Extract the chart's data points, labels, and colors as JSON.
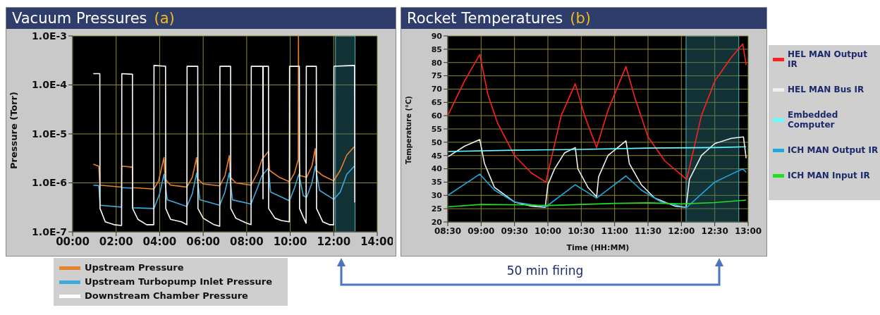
{
  "chart_data": [
    {
      "type": "line",
      "title": "Vacuum Pressures",
      "subtitle": "(a)",
      "ylabel": "Pressure (Torr)",
      "log": "y",
      "grid": true,
      "legend": "bottom",
      "line_style": "solid",
      "xlim": [
        0,
        14
      ],
      "xticks": [
        {
          "value": 0,
          "label": "00:00"
        },
        {
          "value": 2,
          "label": "02:00"
        },
        {
          "value": 4,
          "label": "04:00"
        },
        {
          "value": 6,
          "label": "06:00"
        },
        {
          "value": 8,
          "label": "08:00"
        },
        {
          "value": 10,
          "label": "10:00"
        },
        {
          "value": 12,
          "label": "12:00"
        },
        {
          "value": 14,
          "label": "14:00"
        }
      ],
      "ylim": [
        1e-07,
        0.001
      ],
      "yticks": [
        {
          "value": 1e-07,
          "label": "1.0E-7"
        },
        {
          "value": 1e-06,
          "label": "1.0E-6"
        },
        {
          "value": 1e-05,
          "label": "1.0E-5"
        },
        {
          "value": 0.0001,
          "label": "1.0E-4"
        },
        {
          "value": 0.001,
          "label": "1.0E-3"
        }
      ],
      "bands": [
        {
          "axis": "x",
          "from": 12.08,
          "to": 12.98,
          "color": "#2a6f78"
        }
      ],
      "series": [
        {
          "name": "Upstream Pressure",
          "color": "#e8822a",
          "x": [
            0.95,
            1.2,
            1.25,
            2.25,
            2.26,
            2.75,
            2.76,
            3.74,
            3.95,
            4.2,
            4.25,
            4.5,
            5.25,
            5.5,
            5.7,
            5.75,
            6.0,
            6.76,
            7.0,
            7.2,
            7.25,
            7.5,
            8.2,
            8.5,
            8.7,
            9.0,
            9.05,
            9.5,
            9.97,
            10.2,
            10.37,
            10.38,
            10.4,
            10.45,
            10.75,
            11.0,
            11.15,
            11.2,
            11.5,
            12.0,
            12.3,
            12.6,
            12.95
          ],
          "values": [
            2.4e-06,
            2.2e-06,
            9e-07,
            8.2e-07,
            2.2e-06,
            2.1e-06,
            8e-07,
            7.5e-07,
            1.1e-06,
            3.3e-06,
            1.2e-06,
            9e-07,
            8.2e-07,
            1.3e-06,
            3.3e-06,
            1.2e-06,
            9.5e-07,
            8.7e-07,
            1.4e-06,
            3.6e-06,
            1.3e-06,
            1e-06,
            9e-07,
            1.6e-06,
            3e-06,
            4.4e-06,
            1.8e-06,
            1.3e-06,
            1.05e-06,
            1.6e-06,
            3e-06,
            0.001,
            3.3e-06,
            1.4e-06,
            1.3e-06,
            2.2e-06,
            5e-06,
            1.8e-06,
            1.4e-06,
            1.1e-06,
            1.8e-06,
            3.7e-06,
            5.5e-06
          ]
        },
        {
          "name": "Upstream Turbopump Inlet Pressure",
          "color": "#3fa9dc",
          "x": [
            0.95,
            1.2,
            1.26,
            2.25,
            2.26,
            2.75,
            2.76,
            3.74,
            4.0,
            4.2,
            4.35,
            5.25,
            5.5,
            5.7,
            5.85,
            6.76,
            7.0,
            7.2,
            7.35,
            8.2,
            8.5,
            8.7,
            9.0,
            9.1,
            9.97,
            10.2,
            10.4,
            10.6,
            10.75,
            11.0,
            11.15,
            11.35,
            12.0,
            12.3,
            12.6,
            12.95
          ],
          "values": [
            9e-07,
            8.8e-07,
            3.5e-07,
            3.2e-07,
            8e-07,
            7.8e-07,
            3.1e-07,
            3e-07,
            6e-07,
            1.5e-06,
            4.5e-07,
            3.3e-07,
            6e-07,
            1.6e-06,
            4.5e-07,
            3.5e-07,
            6.5e-07,
            1.6e-06,
            4.5e-07,
            3.7e-07,
            8e-07,
            1.4e-06,
            2e-06,
            6.5e-07,
            4.3e-07,
            8e-07,
            1.5e-06,
            5.5e-07,
            5e-07,
            1e-06,
            2.2e-06,
            7e-07,
            4.6e-07,
            6.5e-07,
            1.5e-06,
            2.2e-06
          ]
        },
        {
          "name": "Downstream Chamber Pressure",
          "color": "#ffffff",
          "x": [
            0.95,
            1.25,
            1.26,
            1.5,
            1.9,
            2.25,
            2.26,
            2.75,
            2.76,
            3.0,
            3.4,
            3.73,
            3.74,
            4.27,
            4.28,
            4.5,
            5.0,
            5.25,
            5.26,
            5.75,
            5.76,
            6.0,
            6.5,
            6.76,
            6.77,
            7.26,
            7.27,
            7.5,
            8.0,
            8.2,
            8.21,
            8.74,
            8.75,
            8.76,
            9.0,
            9.01,
            9.3,
            9.6,
            9.96,
            9.97,
            10.42,
            10.43,
            10.6,
            10.73,
            10.74,
            11.2,
            11.21,
            11.5,
            11.8,
            12.0,
            12.01,
            12.96,
            12.97
          ],
          "values": [
            0.00017,
            0.00017,
            3e-07,
            1.6e-07,
            1.4e-07,
            1.35e-07,
            0.00017,
            0.000165,
            3e-07,
            1.8e-07,
            1.4e-07,
            1.4e-07,
            0.00025,
            0.00024,
            3e-07,
            1.8e-07,
            1.6e-07,
            1.4e-07,
            0.00024,
            0.00024,
            3e-07,
            1.9e-07,
            1.4e-07,
            1.3e-07,
            0.00024,
            0.00024,
            3e-07,
            1.9e-07,
            1.5e-07,
            1.4e-07,
            0.00024,
            0.00024,
            4.7e-07,
            0.00024,
            0.00024,
            3e-07,
            1.9e-07,
            1.7e-07,
            1.6e-07,
            0.00024,
            0.00024,
            3e-07,
            2e-07,
            1.5e-07,
            0.00024,
            0.00024,
            3e-07,
            1.6e-07,
            1.4e-07,
            1.4e-07,
            0.00024,
            0.00025,
            4e-07
          ]
        }
      ]
    },
    {
      "type": "line",
      "title": "Rocket Temperatures",
      "subtitle": "(b)",
      "xlabel": "Time (HH:MM)",
      "ylabel": "Temperature (°C)",
      "grid": true,
      "legend": "right",
      "line_style": "solid",
      "annotations": [
        "50 min firing"
      ],
      "xlim": [
        8.5,
        13
      ],
      "xticks": [
        {
          "value": 8.5,
          "label": "08:30"
        },
        {
          "value": 9,
          "label": "09:00"
        },
        {
          "value": 9.5,
          "label": "09:30"
        },
        {
          "value": 10,
          "label": "10:00"
        },
        {
          "value": 10.5,
          "label": "10:30"
        },
        {
          "value": 11,
          "label": "11:00"
        },
        {
          "value": 11.5,
          "label": "11:30"
        },
        {
          "value": 12,
          "label": "12:00"
        },
        {
          "value": 12.5,
          "label": "12:30"
        },
        {
          "value": 13,
          "label": "13:00"
        }
      ],
      "ylim": [
        20,
        90
      ],
      "yticks": [
        20,
        25,
        30,
        35,
        40,
        45,
        50,
        55,
        60,
        65,
        70,
        75,
        80,
        85,
        90
      ],
      "bands": [
        {
          "axis": "x",
          "from": 12.07,
          "to": 12.86,
          "color": "#2a6f78"
        }
      ],
      "series": [
        {
          "name": "HEL MAN Output IR",
          "color": "#ff2020",
          "x": [
            8.5,
            8.75,
            8.98,
            9.1,
            9.25,
            9.5,
            9.75,
            9.97,
            10.2,
            10.41,
            10.55,
            10.73,
            10.9,
            11.17,
            11.3,
            11.5,
            11.75,
            12.08,
            12.3,
            12.5,
            12.75,
            12.92,
            12.97
          ],
          "values": [
            60,
            73,
            83,
            68,
            57,
            45,
            38.5,
            35,
            60,
            72,
            60,
            48,
            62,
            78.5,
            67,
            52,
            43,
            36,
            60,
            73,
            82,
            87,
            79
          ]
        },
        {
          "name": "HEL MAN Bus IR",
          "color": "#f0f0f0",
          "x": [
            8.5,
            8.75,
            8.98,
            9.05,
            9.2,
            9.5,
            9.75,
            9.96,
            10.0,
            10.1,
            10.25,
            10.41,
            10.45,
            10.6,
            10.73,
            10.76,
            10.9,
            11.17,
            11.22,
            11.4,
            11.6,
            11.9,
            12.07,
            12.12,
            12.3,
            12.5,
            12.75,
            12.93,
            12.97
          ],
          "values": [
            44.5,
            48.5,
            51,
            42,
            33,
            27.5,
            26,
            25.5,
            34,
            40,
            46,
            48,
            40,
            33,
            29.5,
            37,
            45,
            50.5,
            42,
            34,
            29,
            26,
            25.5,
            36,
            45,
            49.5,
            51.5,
            52,
            44
          ]
        },
        {
          "name": "Embedded Computer",
          "color": "#60ffff",
          "x": [
            8.5,
            9.5,
            10.5,
            11.5,
            12.5,
            12.97
          ],
          "values": [
            46.5,
            47,
            47.3,
            47.8,
            48,
            48.3
          ]
        },
        {
          "name": "ICH MAN Output IR",
          "color": "#1ea8e0",
          "x": [
            8.5,
            8.98,
            9.2,
            9.5,
            9.97,
            10.41,
            10.73,
            11.17,
            11.4,
            11.7,
            12.08,
            12.3,
            12.5,
            12.75,
            12.92,
            12.97
          ],
          "values": [
            30,
            38,
            32,
            27.5,
            25.7,
            34,
            29,
            37.3,
            32,
            27.5,
            25.5,
            30.5,
            35,
            38,
            40,
            38.7
          ]
        },
        {
          "name": "ICH MAN Input IR",
          "color": "#20e020",
          "x": [
            8.5,
            9.0,
            9.5,
            10.0,
            10.5,
            11.0,
            11.5,
            12.0,
            12.5,
            12.97
          ],
          "values": [
            25.7,
            26.6,
            26.5,
            26.2,
            26.6,
            27,
            27.2,
            26.8,
            27.3,
            28.2
          ]
        }
      ]
    }
  ]
}
